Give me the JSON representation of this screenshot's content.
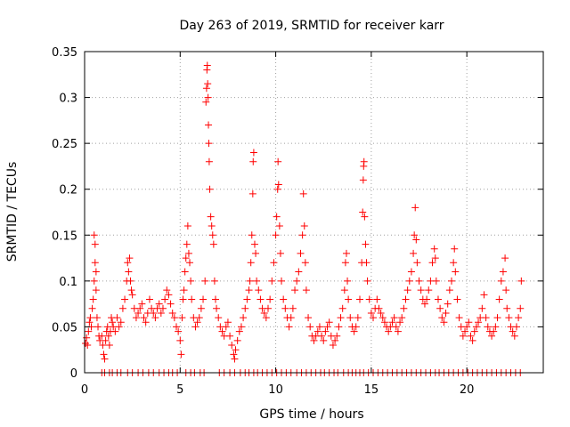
{
  "chart_data": {
    "type": "scatter",
    "title": "Day 263 of 2019, SRMTID for receiver karr",
    "xlabel": "GPS time / hours",
    "ylabel": "SRMTID / TECUs",
    "xlim": [
      0,
      24
    ],
    "ylim": [
      0,
      0.35
    ],
    "xticks": [
      0,
      5,
      10,
      15,
      20
    ],
    "yticks": [
      0,
      0.05,
      0.1,
      0.15,
      0.2,
      0.25,
      0.3,
      0.35
    ],
    "xtick_labels": [
      "0",
      "5",
      "10",
      "15",
      "20"
    ],
    "ytick_labels": [
      "0",
      "0.05",
      "0.1",
      "0.15",
      "0.2",
      "0.25",
      "0.3",
      "0.35"
    ],
    "grid": true,
    "marker": "+",
    "color": "#ff0000",
    "series": [
      {
        "name": "SRMTID",
        "points": [
          [
            0.05,
            0.032
          ],
          [
            0.1,
            0.038
          ],
          [
            0.15,
            0.03
          ],
          [
            0.2,
            0.045
          ],
          [
            0.25,
            0.055
          ],
          [
            0.3,
            0.06
          ],
          [
            0.35,
            0.05
          ],
          [
            0.4,
            0.07
          ],
          [
            0.45,
            0.08
          ],
          [
            0.5,
            0.1
          ],
          [
            0.5,
            0.15
          ],
          [
            0.55,
            0.14
          ],
          [
            0.55,
            0.12
          ],
          [
            0.6,
            0.11
          ],
          [
            0.6,
            0.09
          ],
          [
            0.65,
            0.06
          ],
          [
            0.7,
            0.05
          ],
          [
            0.75,
            0.04
          ],
          [
            0.8,
            0.035
          ],
          [
            0.9,
            0.04
          ],
          [
            0.95,
            0.03
          ],
          [
            1.0,
            0.02
          ],
          [
            1.05,
            0.015
          ],
          [
            1.1,
            0.035
          ],
          [
            1.15,
            0.045
          ],
          [
            1.2,
            0.05
          ],
          [
            1.25,
            0.04
          ],
          [
            1.3,
            0.03
          ],
          [
            1.35,
            0.045
          ],
          [
            1.4,
            0.06
          ],
          [
            1.45,
            0.055
          ],
          [
            1.5,
            0.05
          ],
          [
            1.6,
            0.045
          ],
          [
            1.7,
            0.06
          ],
          [
            1.8,
            0.05
          ],
          [
            1.9,
            0.055
          ],
          [
            2.0,
            0.07
          ],
          [
            2.1,
            0.08
          ],
          [
            2.2,
            0.1
          ],
          [
            2.25,
            0.12
          ],
          [
            2.3,
            0.11
          ],
          [
            2.35,
            0.125
          ],
          [
            2.4,
            0.1
          ],
          [
            2.45,
            0.09
          ],
          [
            2.5,
            0.085
          ],
          [
            2.6,
            0.07
          ],
          [
            2.7,
            0.06
          ],
          [
            2.8,
            0.065
          ],
          [
            2.9,
            0.07
          ],
          [
            3.0,
            0.075
          ],
          [
            3.1,
            0.06
          ],
          [
            3.2,
            0.055
          ],
          [
            3.3,
            0.065
          ],
          [
            3.4,
            0.08
          ],
          [
            3.5,
            0.07
          ],
          [
            3.6,
            0.065
          ],
          [
            3.7,
            0.06
          ],
          [
            3.8,
            0.07
          ],
          [
            3.9,
            0.075
          ],
          [
            4.0,
            0.065
          ],
          [
            4.1,
            0.07
          ],
          [
            4.2,
            0.08
          ],
          [
            4.3,
            0.09
          ],
          [
            4.4,
            0.085
          ],
          [
            4.5,
            0.075
          ],
          [
            4.6,
            0.065
          ],
          [
            4.7,
            0.06
          ],
          [
            4.8,
            0.05
          ],
          [
            4.9,
            0.045
          ],
          [
            5.0,
            0.035
          ],
          [
            5.05,
            0.02
          ],
          [
            5.1,
            0.06
          ],
          [
            5.15,
            0.08
          ],
          [
            5.2,
            0.09
          ],
          [
            5.25,
            0.11
          ],
          [
            5.3,
            0.125
          ],
          [
            5.35,
            0.14
          ],
          [
            5.4,
            0.16
          ],
          [
            5.45,
            0.13
          ],
          [
            5.5,
            0.12
          ],
          [
            5.55,
            0.1
          ],
          [
            5.6,
            0.08
          ],
          [
            5.7,
            0.06
          ],
          [
            5.8,
            0.05
          ],
          [
            5.9,
            0.055
          ],
          [
            6.0,
            0.06
          ],
          [
            6.1,
            0.07
          ],
          [
            6.2,
            0.08
          ],
          [
            6.3,
            0.1
          ],
          [
            6.35,
            0.295
          ],
          [
            6.38,
            0.31
          ],
          [
            6.4,
            0.33
          ],
          [
            6.42,
            0.335
          ],
          [
            6.44,
            0.315
          ],
          [
            6.46,
            0.3
          ],
          [
            6.48,
            0.27
          ],
          [
            6.5,
            0.25
          ],
          [
            6.52,
            0.23
          ],
          [
            6.55,
            0.2
          ],
          [
            6.6,
            0.17
          ],
          [
            6.65,
            0.16
          ],
          [
            6.7,
            0.15
          ],
          [
            6.75,
            0.14
          ],
          [
            6.8,
            0.1
          ],
          [
            6.85,
            0.08
          ],
          [
            6.9,
            0.07
          ],
          [
            7.0,
            0.06
          ],
          [
            7.1,
            0.05
          ],
          [
            7.2,
            0.045
          ],
          [
            7.3,
            0.04
          ],
          [
            7.4,
            0.05
          ],
          [
            7.5,
            0.055
          ],
          [
            7.6,
            0.04
          ],
          [
            7.7,
            0.03
          ],
          [
            7.8,
            0.02
          ],
          [
            7.85,
            0.015
          ],
          [
            7.9,
            0.025
          ],
          [
            8.0,
            0.035
          ],
          [
            8.1,
            0.045
          ],
          [
            8.2,
            0.05
          ],
          [
            8.3,
            0.06
          ],
          [
            8.4,
            0.07
          ],
          [
            8.5,
            0.08
          ],
          [
            8.6,
            0.09
          ],
          [
            8.65,
            0.1
          ],
          [
            8.7,
            0.12
          ],
          [
            8.75,
            0.15
          ],
          [
            8.8,
            0.195
          ],
          [
            8.82,
            0.23
          ],
          [
            8.85,
            0.24
          ],
          [
            8.9,
            0.14
          ],
          [
            8.95,
            0.13
          ],
          [
            9.0,
            0.1
          ],
          [
            9.1,
            0.09
          ],
          [
            9.2,
            0.08
          ],
          [
            9.3,
            0.07
          ],
          [
            9.4,
            0.065
          ],
          [
            9.5,
            0.06
          ],
          [
            9.6,
            0.07
          ],
          [
            9.7,
            0.08
          ],
          [
            9.8,
            0.1
          ],
          [
            9.9,
            0.12
          ],
          [
            10.0,
            0.15
          ],
          [
            10.05,
            0.17
          ],
          [
            10.1,
            0.2
          ],
          [
            10.12,
            0.23
          ],
          [
            10.15,
            0.205
          ],
          [
            10.2,
            0.16
          ],
          [
            10.25,
            0.13
          ],
          [
            10.3,
            0.1
          ],
          [
            10.4,
            0.08
          ],
          [
            10.5,
            0.07
          ],
          [
            10.6,
            0.06
          ],
          [
            10.7,
            0.05
          ],
          [
            10.8,
            0.06
          ],
          [
            10.9,
            0.07
          ],
          [
            11.0,
            0.09
          ],
          [
            11.1,
            0.1
          ],
          [
            11.2,
            0.11
          ],
          [
            11.3,
            0.13
          ],
          [
            11.4,
            0.15
          ],
          [
            11.45,
            0.195
          ],
          [
            11.5,
            0.16
          ],
          [
            11.55,
            0.12
          ],
          [
            11.6,
            0.09
          ],
          [
            11.7,
            0.06
          ],
          [
            11.8,
            0.05
          ],
          [
            11.9,
            0.04
          ],
          [
            12.0,
            0.035
          ],
          [
            12.1,
            0.04
          ],
          [
            12.2,
            0.045
          ],
          [
            12.3,
            0.05
          ],
          [
            12.4,
            0.04
          ],
          [
            12.5,
            0.035
          ],
          [
            12.6,
            0.045
          ],
          [
            12.7,
            0.05
          ],
          [
            12.8,
            0.055
          ],
          [
            12.9,
            0.04
          ],
          [
            13.0,
            0.03
          ],
          [
            13.1,
            0.035
          ],
          [
            13.2,
            0.04
          ],
          [
            13.3,
            0.05
          ],
          [
            13.4,
            0.06
          ],
          [
            13.5,
            0.07
          ],
          [
            13.6,
            0.09
          ],
          [
            13.65,
            0.12
          ],
          [
            13.7,
            0.13
          ],
          [
            13.75,
            0.1
          ],
          [
            13.8,
            0.08
          ],
          [
            13.9,
            0.06
          ],
          [
            14.0,
            0.05
          ],
          [
            14.1,
            0.045
          ],
          [
            14.2,
            0.05
          ],
          [
            14.3,
            0.06
          ],
          [
            14.4,
            0.08
          ],
          [
            14.5,
            0.12
          ],
          [
            14.55,
            0.175
          ],
          [
            14.58,
            0.21
          ],
          [
            14.6,
            0.225
          ],
          [
            14.62,
            0.23
          ],
          [
            14.65,
            0.17
          ],
          [
            14.7,
            0.14
          ],
          [
            14.75,
            0.12
          ],
          [
            14.8,
            0.1
          ],
          [
            14.9,
            0.08
          ],
          [
            15.0,
            0.065
          ],
          [
            15.1,
            0.06
          ],
          [
            15.2,
            0.07
          ],
          [
            15.3,
            0.08
          ],
          [
            15.4,
            0.07
          ],
          [
            15.5,
            0.065
          ],
          [
            15.6,
            0.06
          ],
          [
            15.7,
            0.055
          ],
          [
            15.8,
            0.05
          ],
          [
            15.9,
            0.045
          ],
          [
            16.0,
            0.05
          ],
          [
            16.1,
            0.055
          ],
          [
            16.2,
            0.06
          ],
          [
            16.3,
            0.05
          ],
          [
            16.4,
            0.045
          ],
          [
            16.5,
            0.055
          ],
          [
            16.6,
            0.06
          ],
          [
            16.7,
            0.07
          ],
          [
            16.8,
            0.08
          ],
          [
            16.9,
            0.09
          ],
          [
            17.0,
            0.1
          ],
          [
            17.1,
            0.11
          ],
          [
            17.2,
            0.13
          ],
          [
            17.25,
            0.15
          ],
          [
            17.3,
            0.18
          ],
          [
            17.35,
            0.145
          ],
          [
            17.4,
            0.12
          ],
          [
            17.5,
            0.1
          ],
          [
            17.6,
            0.09
          ],
          [
            17.7,
            0.08
          ],
          [
            17.8,
            0.075
          ],
          [
            17.9,
            0.08
          ],
          [
            18.0,
            0.09
          ],
          [
            18.1,
            0.1
          ],
          [
            18.2,
            0.12
          ],
          [
            18.3,
            0.135
          ],
          [
            18.35,
            0.125
          ],
          [
            18.4,
            0.1
          ],
          [
            18.5,
            0.08
          ],
          [
            18.6,
            0.07
          ],
          [
            18.7,
            0.06
          ],
          [
            18.8,
            0.055
          ],
          [
            18.9,
            0.065
          ],
          [
            19.0,
            0.075
          ],
          [
            19.1,
            0.09
          ],
          [
            19.2,
            0.1
          ],
          [
            19.3,
            0.12
          ],
          [
            19.35,
            0.135
          ],
          [
            19.4,
            0.11
          ],
          [
            19.5,
            0.08
          ],
          [
            19.6,
            0.06
          ],
          [
            19.7,
            0.05
          ],
          [
            19.8,
            0.04
          ],
          [
            19.9,
            0.045
          ],
          [
            20.0,
            0.05
          ],
          [
            20.1,
            0.055
          ],
          [
            20.2,
            0.04
          ],
          [
            20.3,
            0.035
          ],
          [
            20.4,
            0.045
          ],
          [
            20.5,
            0.05
          ],
          [
            20.6,
            0.055
          ],
          [
            20.7,
            0.06
          ],
          [
            20.8,
            0.07
          ],
          [
            20.9,
            0.085
          ],
          [
            21.0,
            0.06
          ],
          [
            21.1,
            0.05
          ],
          [
            21.2,
            0.045
          ],
          [
            21.3,
            0.04
          ],
          [
            21.4,
            0.045
          ],
          [
            21.5,
            0.05
          ],
          [
            21.6,
            0.06
          ],
          [
            21.7,
            0.08
          ],
          [
            21.8,
            0.1
          ],
          [
            21.9,
            0.11
          ],
          [
            22.0,
            0.125
          ],
          [
            22.05,
            0.09
          ],
          [
            22.1,
            0.07
          ],
          [
            22.2,
            0.06
          ],
          [
            22.3,
            0.05
          ],
          [
            22.4,
            0.045
          ],
          [
            22.5,
            0.04
          ],
          [
            22.6,
            0.05
          ],
          [
            22.7,
            0.06
          ],
          [
            22.8,
            0.07
          ],
          [
            22.85,
            0.1
          ]
        ],
        "zero_points": [
          0.9,
          1.05,
          1.3,
          1.45,
          1.7,
          1.9,
          2.25,
          2.5,
          2.8,
          3.05,
          3.35,
          3.6,
          3.9,
          4.15,
          4.4,
          4.6,
          4.85,
          5.3,
          5.55,
          5.75,
          6.05,
          6.25,
          7.05,
          7.3,
          7.6,
          7.85,
          8.15,
          8.4,
          8.6,
          8.85,
          9.05,
          9.3,
          9.55,
          9.8,
          10.05,
          10.3,
          10.55,
          10.8,
          11.1,
          11.35,
          11.6,
          11.85,
          12.1,
          12.35,
          12.55,
          12.8,
          13.05,
          13.25,
          13.55,
          13.8,
          14.0,
          14.2,
          14.4,
          14.6,
          14.85,
          15.1,
          15.35,
          15.6,
          15.85,
          16.1,
          16.35,
          16.6,
          16.85,
          17.1,
          17.35,
          17.6,
          17.85,
          18.1,
          18.35,
          18.55,
          18.8,
          19.05,
          19.3,
          19.55,
          19.8,
          20.05,
          20.3,
          20.55,
          20.8,
          21.05,
          21.3,
          21.55,
          21.8,
          22.05,
          22.3,
          22.55,
          22.8
        ]
      }
    ]
  }
}
